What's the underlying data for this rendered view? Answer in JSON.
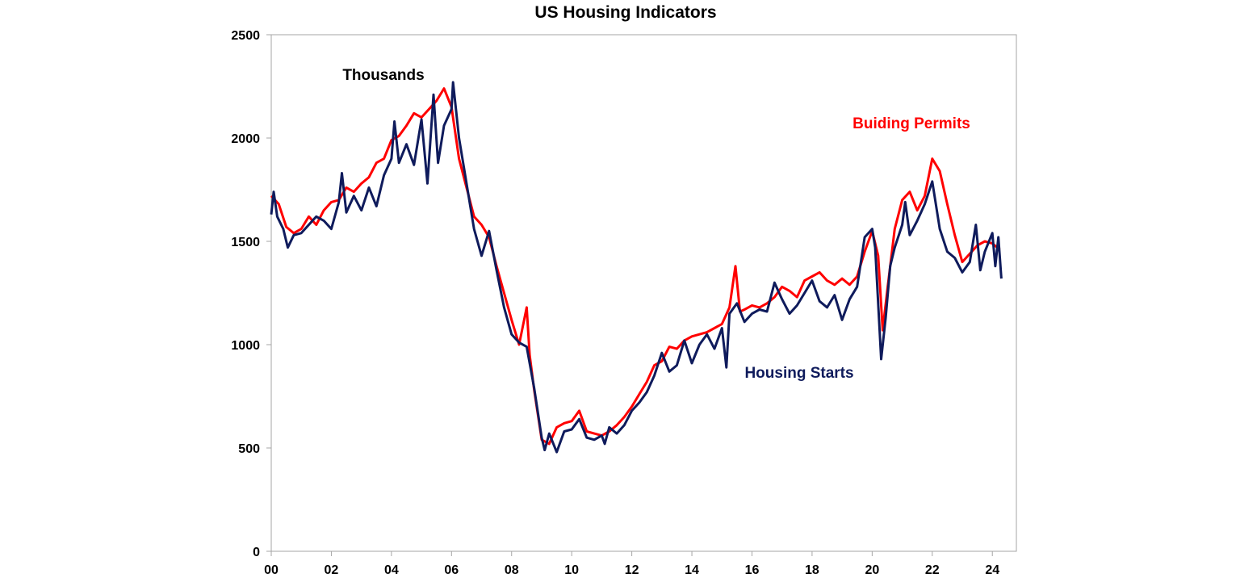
{
  "chart_data": {
    "type": "line",
    "title": "US Housing Indicators",
    "xlabel": "",
    "ylabel": "",
    "xlim": [
      2000,
      2024.8
    ],
    "ylim": [
      0,
      2500
    ],
    "x_ticks": [
      {
        "value": 2000,
        "label": "00"
      },
      {
        "value": 2002,
        "label": "02"
      },
      {
        "value": 2004,
        "label": "04"
      },
      {
        "value": 2006,
        "label": "06"
      },
      {
        "value": 2008,
        "label": "08"
      },
      {
        "value": 2010,
        "label": "10"
      },
      {
        "value": 2012,
        "label": "12"
      },
      {
        "value": 2014,
        "label": "14"
      },
      {
        "value": 2016,
        "label": "16"
      },
      {
        "value": 2018,
        "label": "18"
      },
      {
        "value": 2020,
        "label": "20"
      },
      {
        "value": 2022,
        "label": "22"
      },
      {
        "value": 2024,
        "label": "24"
      }
    ],
    "y_ticks": [
      0,
      500,
      1000,
      1500,
      2000,
      2500
    ],
    "grid": false,
    "annotations": {
      "units": "Thousands",
      "permits_label": "Buiding Permits",
      "starts_label": "Housing Starts"
    },
    "series": [
      {
        "key": "permits",
        "color": "#ff0000",
        "points": [
          [
            2000.0,
            1720
          ],
          [
            2000.25,
            1680
          ],
          [
            2000.5,
            1570
          ],
          [
            2000.75,
            1540
          ],
          [
            2001.0,
            1560
          ],
          [
            2001.25,
            1620
          ],
          [
            2001.5,
            1580
          ],
          [
            2001.75,
            1650
          ],
          [
            2002.0,
            1690
          ],
          [
            2002.25,
            1700
          ],
          [
            2002.5,
            1760
          ],
          [
            2002.75,
            1740
          ],
          [
            2003.0,
            1780
          ],
          [
            2003.25,
            1810
          ],
          [
            2003.5,
            1880
          ],
          [
            2003.75,
            1900
          ],
          [
            2004.0,
            1990
          ],
          [
            2004.25,
            2010
          ],
          [
            2004.5,
            2060
          ],
          [
            2004.75,
            2120
          ],
          [
            2005.0,
            2100
          ],
          [
            2005.25,
            2140
          ],
          [
            2005.5,
            2180
          ],
          [
            2005.75,
            2240
          ],
          [
            2006.0,
            2150
          ],
          [
            2006.25,
            1900
          ],
          [
            2006.5,
            1760
          ],
          [
            2006.75,
            1620
          ],
          [
            2007.0,
            1580
          ],
          [
            2007.25,
            1520
          ],
          [
            2007.5,
            1380
          ],
          [
            2007.75,
            1250
          ],
          [
            2008.0,
            1120
          ],
          [
            2008.25,
            1000
          ],
          [
            2008.5,
            1180
          ],
          [
            2008.6,
            950
          ],
          [
            2008.75,
            780
          ],
          [
            2009.0,
            540
          ],
          [
            2009.25,
            520
          ],
          [
            2009.5,
            600
          ],
          [
            2009.75,
            620
          ],
          [
            2010.0,
            630
          ],
          [
            2010.25,
            680
          ],
          [
            2010.5,
            580
          ],
          [
            2010.75,
            570
          ],
          [
            2011.0,
            560
          ],
          [
            2011.25,
            580
          ],
          [
            2011.5,
            610
          ],
          [
            2011.75,
            650
          ],
          [
            2012.0,
            700
          ],
          [
            2012.25,
            760
          ],
          [
            2012.5,
            820
          ],
          [
            2012.75,
            900
          ],
          [
            2013.0,
            920
          ],
          [
            2013.25,
            990
          ],
          [
            2013.5,
            980
          ],
          [
            2013.75,
            1020
          ],
          [
            2014.0,
            1040
          ],
          [
            2014.25,
            1050
          ],
          [
            2014.5,
            1060
          ],
          [
            2014.75,
            1080
          ],
          [
            2015.0,
            1100
          ],
          [
            2015.25,
            1180
          ],
          [
            2015.45,
            1380
          ],
          [
            2015.6,
            1160
          ],
          [
            2015.75,
            1170
          ],
          [
            2016.0,
            1190
          ],
          [
            2016.25,
            1180
          ],
          [
            2016.5,
            1200
          ],
          [
            2016.75,
            1230
          ],
          [
            2017.0,
            1280
          ],
          [
            2017.25,
            1260
          ],
          [
            2017.5,
            1230
          ],
          [
            2017.75,
            1310
          ],
          [
            2018.0,
            1330
          ],
          [
            2018.25,
            1350
          ],
          [
            2018.5,
            1310
          ],
          [
            2018.75,
            1290
          ],
          [
            2019.0,
            1320
          ],
          [
            2019.25,
            1290
          ],
          [
            2019.5,
            1330
          ],
          [
            2019.75,
            1450
          ],
          [
            2020.0,
            1550
          ],
          [
            2020.2,
            1430
          ],
          [
            2020.35,
            1070
          ],
          [
            2020.5,
            1260
          ],
          [
            2020.75,
            1560
          ],
          [
            2021.0,
            1700
          ],
          [
            2021.25,
            1740
          ],
          [
            2021.5,
            1650
          ],
          [
            2021.75,
            1720
          ],
          [
            2022.0,
            1900
          ],
          [
            2022.25,
            1840
          ],
          [
            2022.5,
            1680
          ],
          [
            2022.75,
            1530
          ],
          [
            2023.0,
            1400
          ],
          [
            2023.25,
            1440
          ],
          [
            2023.5,
            1480
          ],
          [
            2023.75,
            1500
          ],
          [
            2024.0,
            1490
          ],
          [
            2024.25,
            1460
          ]
        ]
      },
      {
        "key": "starts",
        "color": "#0f1b5c",
        "points": [
          [
            2000.0,
            1630
          ],
          [
            2000.08,
            1740
          ],
          [
            2000.2,
            1620
          ],
          [
            2000.4,
            1560
          ],
          [
            2000.55,
            1470
          ],
          [
            2000.75,
            1530
          ],
          [
            2001.0,
            1540
          ],
          [
            2001.25,
            1580
          ],
          [
            2001.5,
            1620
          ],
          [
            2001.75,
            1600
          ],
          [
            2002.0,
            1560
          ],
          [
            2002.25,
            1690
          ],
          [
            2002.35,
            1830
          ],
          [
            2002.5,
            1640
          ],
          [
            2002.75,
            1720
          ],
          [
            2003.0,
            1650
          ],
          [
            2003.25,
            1760
          ],
          [
            2003.5,
            1670
          ],
          [
            2003.75,
            1820
          ],
          [
            2004.0,
            1900
          ],
          [
            2004.1,
            2080
          ],
          [
            2004.25,
            1880
          ],
          [
            2004.5,
            1970
          ],
          [
            2004.75,
            1870
          ],
          [
            2005.0,
            2090
          ],
          [
            2005.2,
            1780
          ],
          [
            2005.4,
            2210
          ],
          [
            2005.55,
            1880
          ],
          [
            2005.75,
            2060
          ],
          [
            2006.0,
            2140
          ],
          [
            2006.05,
            2270
          ],
          [
            2006.25,
            2000
          ],
          [
            2006.5,
            1780
          ],
          [
            2006.75,
            1560
          ],
          [
            2007.0,
            1430
          ],
          [
            2007.25,
            1550
          ],
          [
            2007.5,
            1360
          ],
          [
            2007.75,
            1180
          ],
          [
            2008.0,
            1050
          ],
          [
            2008.25,
            1010
          ],
          [
            2008.5,
            990
          ],
          [
            2008.75,
            790
          ],
          [
            2009.0,
            550
          ],
          [
            2009.1,
            490
          ],
          [
            2009.25,
            570
          ],
          [
            2009.5,
            480
          ],
          [
            2009.75,
            580
          ],
          [
            2010.0,
            590
          ],
          [
            2010.25,
            640
          ],
          [
            2010.5,
            550
          ],
          [
            2010.75,
            540
          ],
          [
            2011.0,
            560
          ],
          [
            2011.1,
            520
          ],
          [
            2011.25,
            600
          ],
          [
            2011.5,
            570
          ],
          [
            2011.75,
            610
          ],
          [
            2012.0,
            680
          ],
          [
            2012.25,
            720
          ],
          [
            2012.5,
            770
          ],
          [
            2012.75,
            850
          ],
          [
            2013.0,
            960
          ],
          [
            2013.25,
            870
          ],
          [
            2013.5,
            900
          ],
          [
            2013.75,
            1020
          ],
          [
            2014.0,
            910
          ],
          [
            2014.25,
            1000
          ],
          [
            2014.5,
            1050
          ],
          [
            2014.75,
            980
          ],
          [
            2015.0,
            1080
          ],
          [
            2015.15,
            890
          ],
          [
            2015.25,
            1150
          ],
          [
            2015.5,
            1200
          ],
          [
            2015.75,
            1110
          ],
          [
            2016.0,
            1150
          ],
          [
            2016.25,
            1170
          ],
          [
            2016.5,
            1160
          ],
          [
            2016.75,
            1300
          ],
          [
            2017.0,
            1220
          ],
          [
            2017.25,
            1150
          ],
          [
            2017.5,
            1190
          ],
          [
            2017.75,
            1250
          ],
          [
            2018.0,
            1310
          ],
          [
            2018.25,
            1210
          ],
          [
            2018.5,
            1180
          ],
          [
            2018.75,
            1240
          ],
          [
            2019.0,
            1120
          ],
          [
            2019.25,
            1220
          ],
          [
            2019.5,
            1280
          ],
          [
            2019.75,
            1520
          ],
          [
            2020.0,
            1560
          ],
          [
            2020.1,
            1470
          ],
          [
            2020.3,
            930
          ],
          [
            2020.45,
            1130
          ],
          [
            2020.6,
            1380
          ],
          [
            2020.75,
            1470
          ],
          [
            2021.0,
            1580
          ],
          [
            2021.1,
            1690
          ],
          [
            2021.25,
            1530
          ],
          [
            2021.5,
            1600
          ],
          [
            2021.75,
            1680
          ],
          [
            2022.0,
            1790
          ],
          [
            2022.25,
            1560
          ],
          [
            2022.5,
            1450
          ],
          [
            2022.75,
            1420
          ],
          [
            2023.0,
            1350
          ],
          [
            2023.25,
            1400
          ],
          [
            2023.45,
            1580
          ],
          [
            2023.6,
            1360
          ],
          [
            2023.75,
            1450
          ],
          [
            2024.0,
            1540
          ],
          [
            2024.1,
            1380
          ],
          [
            2024.2,
            1520
          ],
          [
            2024.3,
            1320
          ]
        ]
      }
    ]
  }
}
